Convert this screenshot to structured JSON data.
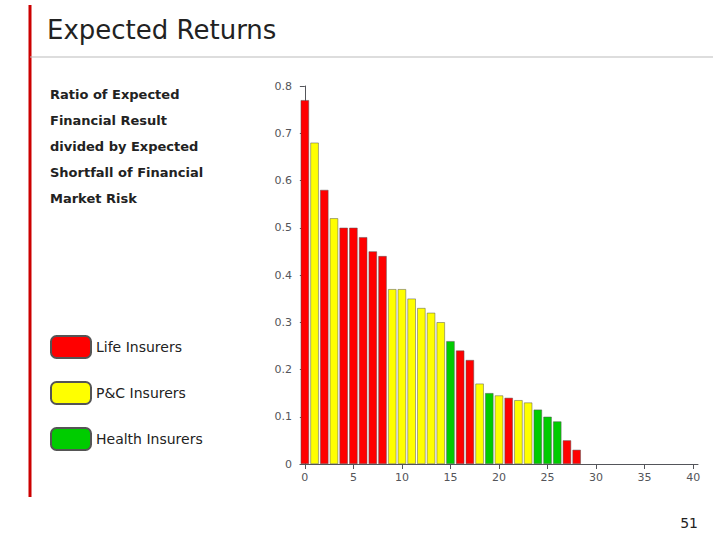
{
  "chart_data": {
    "type": "bar",
    "title": "Expected Returns",
    "subtitle": [
      "Ratio of Expected",
      "Financial Result",
      "divided by Expected",
      "Shortfall of Financial",
      "Market Risk"
    ],
    "annotations": [
      "51"
    ],
    "x": [
      0,
      1,
      2,
      3,
      4,
      5,
      6,
      7,
      8,
      9,
      10,
      11,
      12,
      13,
      14,
      15,
      16,
      17,
      18,
      19,
      20,
      21,
      22,
      23,
      24,
      25,
      26,
      27,
      28
    ],
    "series": [
      {
        "name": "Life Insurers",
        "color": "#ff0000",
        "values": [
          0.77,
          null,
          0.58,
          null,
          0.5,
          0.5,
          0.48,
          0.45,
          0.44,
          null,
          null,
          null,
          null,
          null,
          null,
          null,
          0.24,
          0.22,
          null,
          null,
          null,
          0.14,
          null,
          null,
          null,
          null,
          null,
          0.05,
          0.03
        ]
      },
      {
        "name": "P&C Insurers",
        "color": "#ffff00",
        "values": [
          null,
          0.68,
          null,
          0.52,
          null,
          null,
          null,
          null,
          null,
          0.37,
          0.37,
          0.35,
          0.33,
          0.32,
          0.3,
          null,
          null,
          null,
          0.17,
          null,
          0.145,
          null,
          0.135,
          0.13,
          null,
          null,
          null,
          null,
          null
        ]
      },
      {
        "name": "Health Insurers",
        "color": "#00cc00",
        "values": [
          null,
          null,
          null,
          null,
          null,
          null,
          null,
          null,
          null,
          null,
          null,
          null,
          null,
          null,
          null,
          0.26,
          null,
          null,
          null,
          0.15,
          null,
          null,
          null,
          null,
          0.115,
          0.1,
          0.09,
          null,
          null
        ]
      }
    ],
    "xlim": [
      -0.5,
      40.5
    ],
    "xticks": [
      0,
      5,
      10,
      15,
      20,
      25,
      30,
      35,
      40
    ],
    "ylim": [
      0,
      0.8
    ],
    "yticks": [
      0,
      0.1,
      0.2,
      0.3,
      0.4,
      0.5,
      0.6,
      0.7,
      0.8
    ],
    "grid": false,
    "legend": "lower left"
  }
}
